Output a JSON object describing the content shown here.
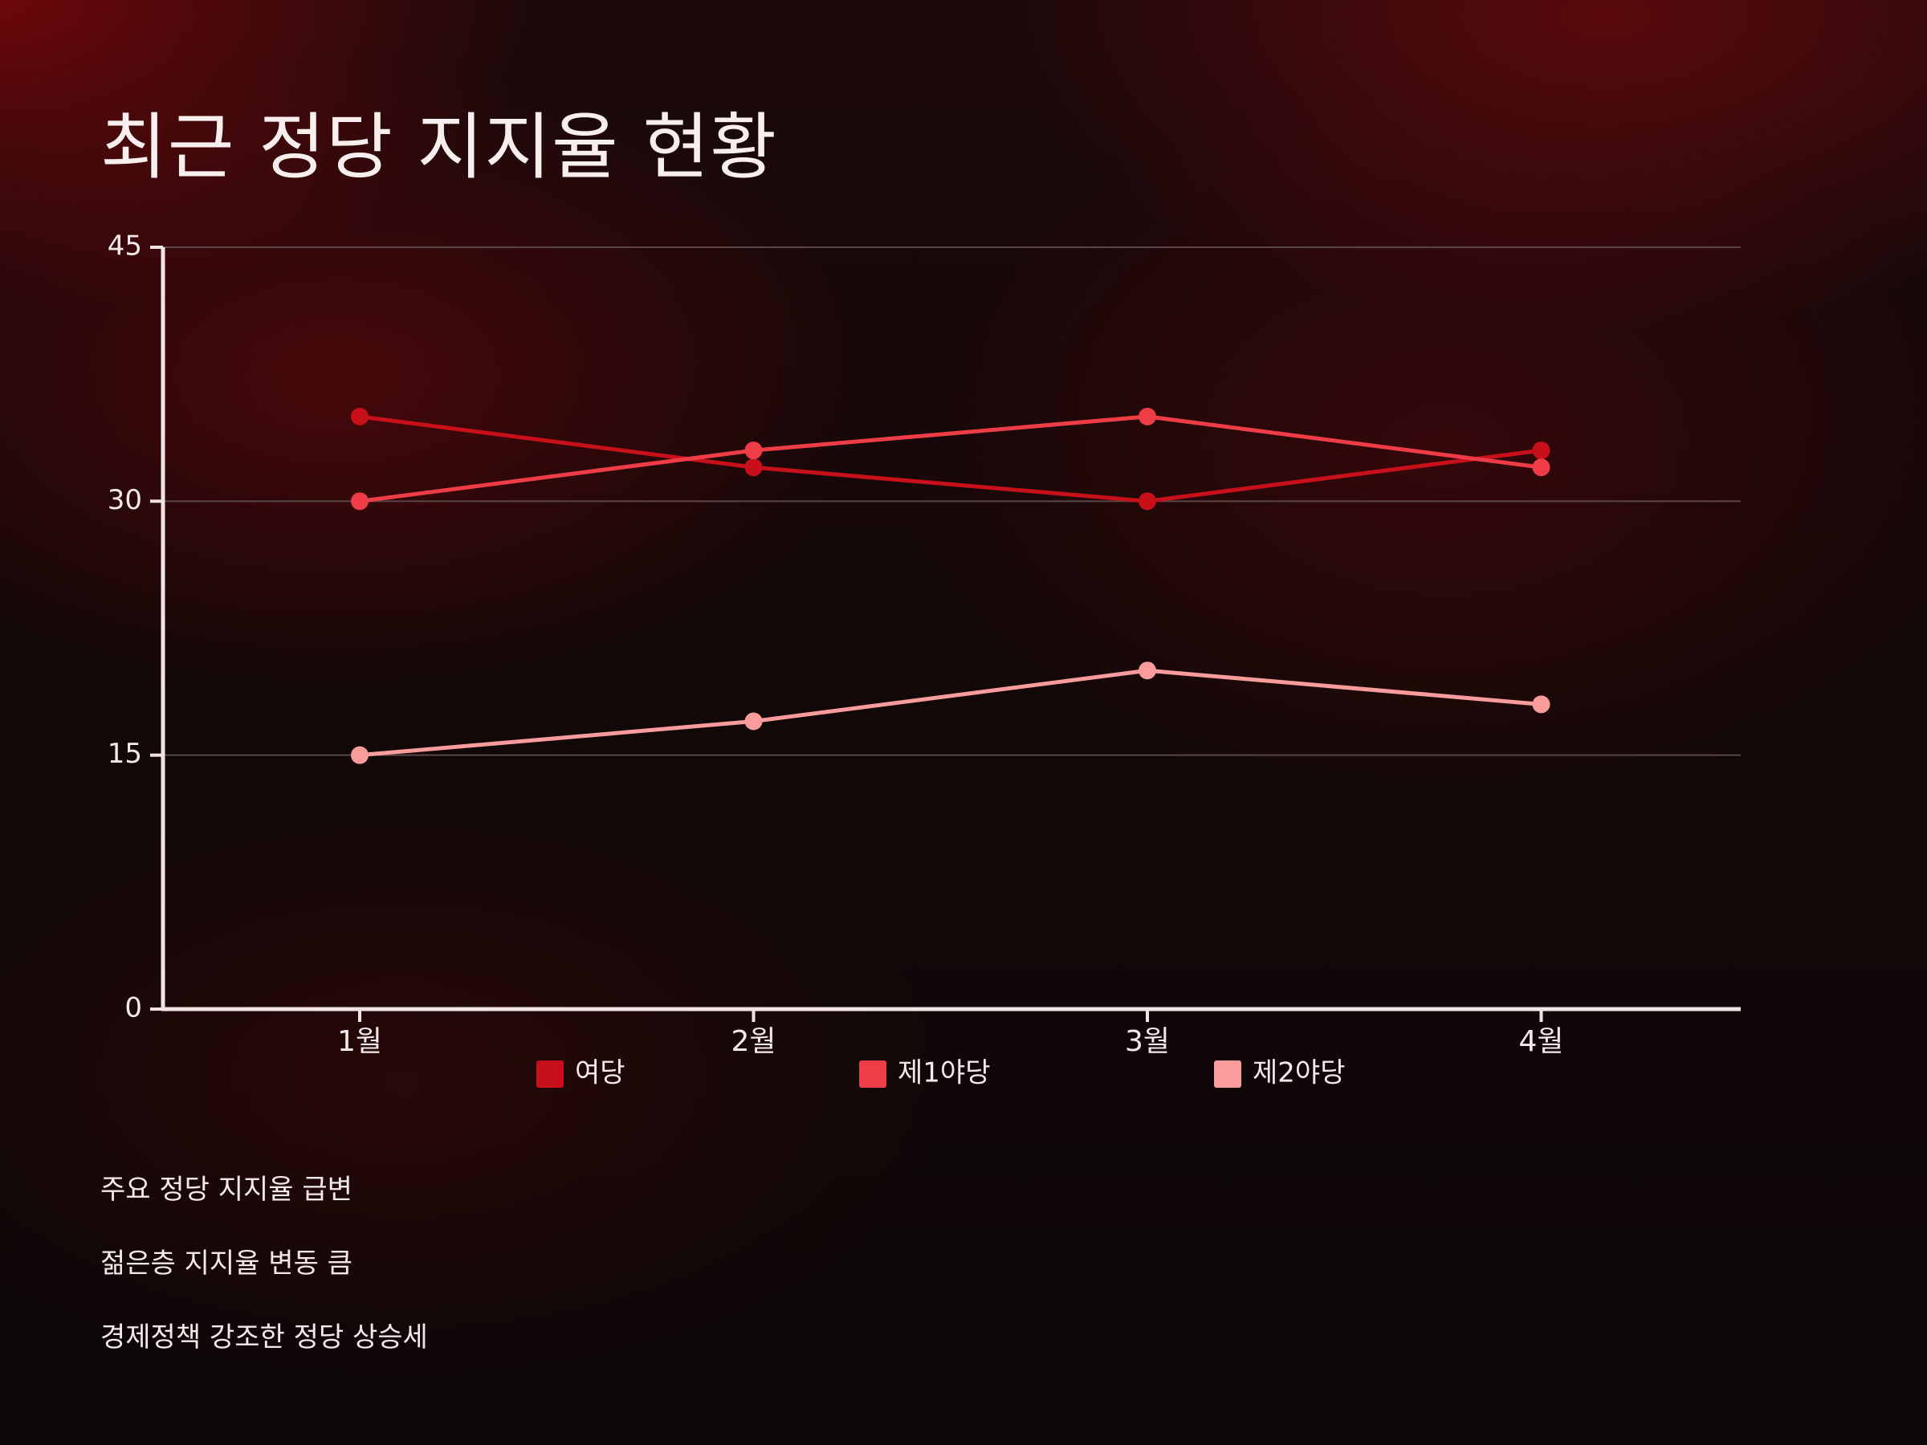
{
  "page": {
    "title": "최근 정당 지지율 현황",
    "notes": [
      "주요 정당 지지율 급변",
      "젊은층 지지율 변동 큼",
      "경제정책 강조한 정당 상승세"
    ]
  },
  "colors": {
    "axis": "#f2e4e4",
    "grid": "#5a4646",
    "text": "#f4e9e9"
  },
  "chart_data": {
    "type": "line",
    "title": "",
    "xlabel": "",
    "ylabel": "",
    "categories": [
      "1월",
      "2월",
      "3월",
      "4월"
    ],
    "ylim": [
      0,
      45
    ],
    "yticks": [
      0,
      15,
      30,
      45
    ],
    "grid": true,
    "legend_position": "bottom",
    "series": [
      {
        "name": "여당",
        "values": [
          35,
          32,
          30,
          33
        ],
        "color": "#c8101a"
      },
      {
        "name": "제1야당",
        "values": [
          30,
          33,
          35,
          32
        ],
        "color": "#ef3d48"
      },
      {
        "name": "제2야당",
        "values": [
          15,
          17,
          20,
          18
        ],
        "color": "#fa9c9c"
      }
    ]
  }
}
